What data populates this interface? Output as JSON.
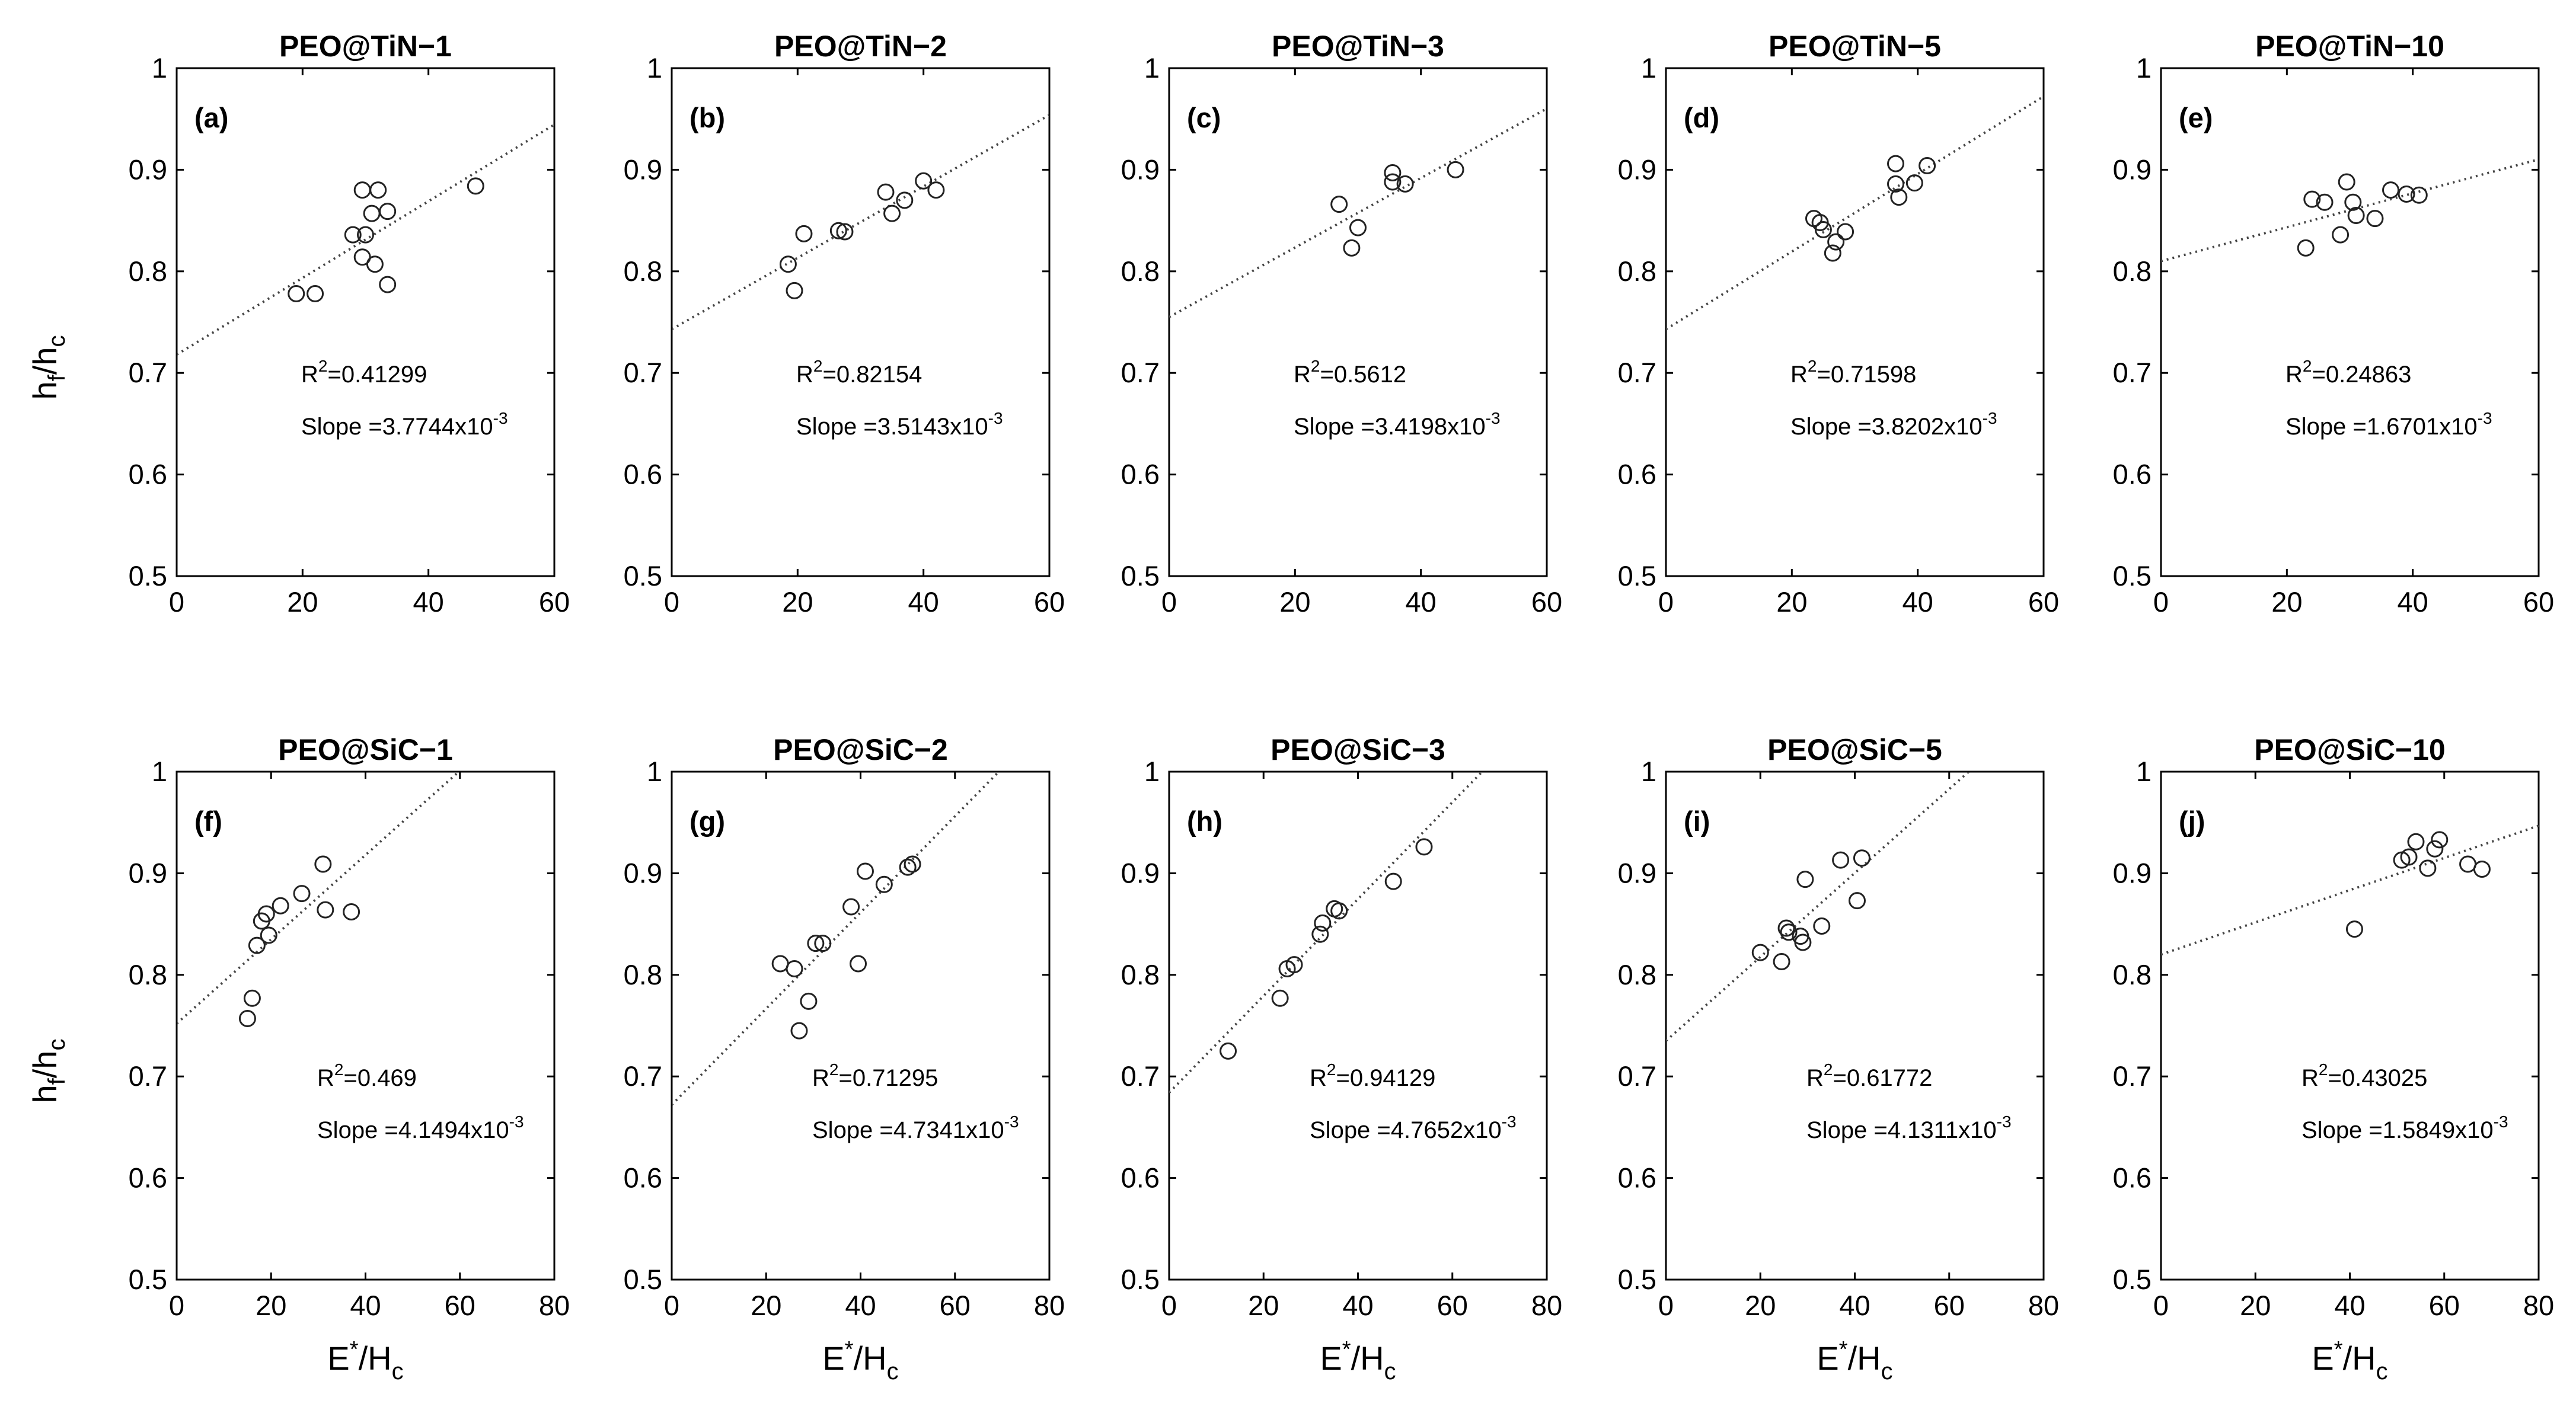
{
  "figure": {
    "ylabel": {
      "main": "h",
      "sub1": "f",
      "slash": "/",
      "main2": "h",
      "sub2": "c"
    },
    "xlabel": {
      "main": "E",
      "sup": "*",
      "slash": "/H",
      "sub": "c"
    },
    "r2_prefix": "R",
    "r2_exp": "2",
    "slope_prefix": "Slope =",
    "slope_exp": "-3"
  },
  "chart_data": [
    {
      "type": "scatter",
      "title": "PEO@TiN−1",
      "label": "(a)",
      "xlim": [
        0,
        60
      ],
      "ylim": [
        0.5,
        1
      ],
      "xticks": [
        "0",
        "20",
        "40",
        "60"
      ],
      "yticks": [
        "0.5",
        "0.6",
        "0.7",
        "0.8",
        "0.9",
        "1"
      ],
      "points": [
        [
          19,
          0.778
        ],
        [
          22,
          0.778
        ],
        [
          28,
          0.836
        ],
        [
          29.5,
          0.88
        ],
        [
          29.5,
          0.814
        ],
        [
          30,
          0.836
        ],
        [
          31,
          0.857
        ],
        [
          31.5,
          0.807
        ],
        [
          32,
          0.88
        ],
        [
          33.5,
          0.859
        ],
        [
          33.5,
          0.787
        ],
        [
          47.5,
          0.884
        ]
      ],
      "fit": {
        "intercept": 0.718,
        "slope": 0.0037744
      },
      "r2": "=0.41299",
      "slope_text": "3.7744x10"
    },
    {
      "type": "scatter",
      "title": "PEO@TiN−2",
      "label": "(b)",
      "xlim": [
        0,
        60
      ],
      "ylim": [
        0.5,
        1
      ],
      "xticks": [
        "0",
        "20",
        "40",
        "60"
      ],
      "yticks": [
        "0.5",
        "0.6",
        "0.7",
        "0.8",
        "0.9",
        "1"
      ],
      "points": [
        [
          18.5,
          0.807
        ],
        [
          19.5,
          0.781
        ],
        [
          21,
          0.837
        ],
        [
          26.5,
          0.84
        ],
        [
          27.5,
          0.839
        ],
        [
          34,
          0.878
        ],
        [
          35,
          0.857
        ],
        [
          37,
          0.87
        ],
        [
          40,
          0.889
        ],
        [
          42,
          0.88
        ]
      ],
      "fit": {
        "intercept": 0.743,
        "slope": 0.0035143
      },
      "r2": "=0.82154",
      "slope_text": "3.5143x10"
    },
    {
      "type": "scatter",
      "title": "PEO@TiN−3",
      "label": "(c)",
      "xlim": [
        0,
        60
      ],
      "ylim": [
        0.5,
        1
      ],
      "xticks": [
        "0",
        "20",
        "40",
        "60"
      ],
      "yticks": [
        "0.5",
        "0.6",
        "0.7",
        "0.8",
        "0.9",
        "1"
      ],
      "points": [
        [
          27,
          0.866
        ],
        [
          29,
          0.823
        ],
        [
          30,
          0.843
        ],
        [
          35.5,
          0.897
        ],
        [
          35.5,
          0.888
        ],
        [
          37.5,
          0.886
        ],
        [
          45.5,
          0.9
        ]
      ],
      "fit": {
        "intercept": 0.755,
        "slope": 0.0034198
      },
      "r2": "=0.5612",
      "slope_text": "3.4198x10"
    },
    {
      "type": "scatter",
      "title": "PEO@TiN−5",
      "label": "(d)",
      "xlim": [
        0,
        60
      ],
      "ylim": [
        0.5,
        1
      ],
      "xticks": [
        "0",
        "20",
        "40",
        "60"
      ],
      "yticks": [
        "0.5",
        "0.6",
        "0.7",
        "0.8",
        "0.9",
        "1"
      ],
      "points": [
        [
          23.5,
          0.852
        ],
        [
          24.5,
          0.848
        ],
        [
          25,
          0.841
        ],
        [
          26.5,
          0.818
        ],
        [
          27,
          0.829
        ],
        [
          28.5,
          0.839
        ],
        [
          36.5,
          0.906
        ],
        [
          36.5,
          0.886
        ],
        [
          37,
          0.873
        ],
        [
          39.5,
          0.887
        ],
        [
          41.5,
          0.904
        ]
      ],
      "fit": {
        "intercept": 0.743,
        "slope": 0.0038202
      },
      "r2": "=0.71598",
      "slope_text": "3.8202x10"
    },
    {
      "type": "scatter",
      "title": "PEO@TiN−10",
      "label": "(e)",
      "xlim": [
        0,
        60
      ],
      "ylim": [
        0.5,
        1
      ],
      "xticks": [
        "0",
        "20",
        "40",
        "60"
      ],
      "yticks": [
        "0.5",
        "0.6",
        "0.7",
        "0.8",
        "0.9",
        "1"
      ],
      "points": [
        [
          23,
          0.823
        ],
        [
          24,
          0.871
        ],
        [
          26,
          0.868
        ],
        [
          28.5,
          0.836
        ],
        [
          29.5,
          0.888
        ],
        [
          30.5,
          0.868
        ],
        [
          31,
          0.855
        ],
        [
          34,
          0.852
        ],
        [
          36.5,
          0.88
        ],
        [
          39,
          0.876
        ],
        [
          41,
          0.875
        ]
      ],
      "fit": {
        "intercept": 0.81,
        "slope": 0.0016701
      },
      "r2": "=0.24863",
      "slope_text": "1.6701x10"
    },
    {
      "type": "scatter",
      "title": "PEO@SiC−1",
      "label": "(f)",
      "xlim": [
        0,
        80
      ],
      "ylim": [
        0.5,
        1
      ],
      "xticks": [
        "0",
        "20",
        "40",
        "60",
        "80"
      ],
      "yticks": [
        "0.5",
        "0.6",
        "0.7",
        "0.8",
        "0.9",
        "1"
      ],
      "points": [
        [
          15,
          0.757
        ],
        [
          16,
          0.777
        ],
        [
          17,
          0.829
        ],
        [
          18,
          0.853
        ],
        [
          19,
          0.86
        ],
        [
          19.5,
          0.839
        ],
        [
          22,
          0.868
        ],
        [
          26.5,
          0.88
        ],
        [
          31,
          0.909
        ],
        [
          31.5,
          0.864
        ],
        [
          37,
          0.862
        ]
      ],
      "fit": {
        "intercept": 0.752,
        "slope": 0.0041494
      },
      "r2": "=0.469",
      "slope_text": "4.1494x10"
    },
    {
      "type": "scatter",
      "title": "PEO@SiC−2",
      "label": "(g)",
      "xlim": [
        0,
        80
      ],
      "ylim": [
        0.5,
        1
      ],
      "xticks": [
        "0",
        "20",
        "40",
        "60",
        "80"
      ],
      "yticks": [
        "0.5",
        "0.6",
        "0.7",
        "0.8",
        "0.9",
        "1"
      ],
      "points": [
        [
          23,
          0.811
        ],
        [
          26,
          0.806
        ],
        [
          27,
          0.745
        ],
        [
          29,
          0.774
        ],
        [
          30.5,
          0.831
        ],
        [
          32,
          0.831
        ],
        [
          38,
          0.867
        ],
        [
          39.5,
          0.811
        ],
        [
          41,
          0.902
        ],
        [
          45,
          0.889
        ],
        [
          50,
          0.906
        ],
        [
          51,
          0.909
        ]
      ],
      "fit": {
        "intercept": 0.672,
        "slope": 0.0047341
      },
      "r2": "=0.71295",
      "slope_text": "4.7341x10"
    },
    {
      "type": "scatter",
      "title": "PEO@SiC−3",
      "label": "(h)",
      "xlim": [
        0,
        80
      ],
      "ylim": [
        0.5,
        1
      ],
      "xticks": [
        "0",
        "20",
        "40",
        "60",
        "80"
      ],
      "yticks": [
        "0.5",
        "0.6",
        "0.7",
        "0.8",
        "0.9",
        "1"
      ],
      "points": [
        [
          12.5,
          0.725
        ],
        [
          23.5,
          0.777
        ],
        [
          25,
          0.806
        ],
        [
          26.5,
          0.81
        ],
        [
          32,
          0.84
        ],
        [
          32.5,
          0.851
        ],
        [
          35,
          0.865
        ],
        [
          36,
          0.863
        ],
        [
          47.5,
          0.892
        ],
        [
          54,
          0.926
        ]
      ],
      "fit": {
        "intercept": 0.684,
        "slope": 0.0047652
      },
      "r2": "=0.94129",
      "slope_text": "4.7652x10"
    },
    {
      "type": "scatter",
      "title": "PEO@SiC−5",
      "label": "(i)",
      "xlim": [
        0,
        80
      ],
      "ylim": [
        0.5,
        1
      ],
      "xticks": [
        "0",
        "20",
        "40",
        "60",
        "80"
      ],
      "yticks": [
        "0.5",
        "0.6",
        "0.7",
        "0.8",
        "0.9",
        "1"
      ],
      "points": [
        [
          20,
          0.822
        ],
        [
          24.5,
          0.813
        ],
        [
          25.5,
          0.846
        ],
        [
          26,
          0.842
        ],
        [
          28.5,
          0.838
        ],
        [
          29,
          0.832
        ],
        [
          29.5,
          0.894
        ],
        [
          33,
          0.848
        ],
        [
          37,
          0.913
        ],
        [
          40.5,
          0.873
        ],
        [
          41.5,
          0.915
        ]
      ],
      "fit": {
        "intercept": 0.735,
        "slope": 0.0041311
      },
      "r2": "=0.61772",
      "slope_text": "4.1311x10"
    },
    {
      "type": "scatter",
      "title": "PEO@SiC−10",
      "label": "(j)",
      "xlim": [
        0,
        80
      ],
      "ylim": [
        0.5,
        1
      ],
      "xticks": [
        "0",
        "20",
        "40",
        "60",
        "80"
      ],
      "yticks": [
        "0.5",
        "0.6",
        "0.7",
        "0.8",
        "0.9",
        "1"
      ],
      "points": [
        [
          41,
          0.845
        ],
        [
          51,
          0.913
        ],
        [
          52.5,
          0.916
        ],
        [
          54,
          0.931
        ],
        [
          56.5,
          0.905
        ],
        [
          58,
          0.924
        ],
        [
          59,
          0.933
        ],
        [
          65,
          0.909
        ],
        [
          68,
          0.904
        ]
      ],
      "fit": {
        "intercept": 0.82,
        "slope": 0.0015849
      },
      "r2": "=0.43025",
      "slope_text": "1.5849x10"
    }
  ]
}
